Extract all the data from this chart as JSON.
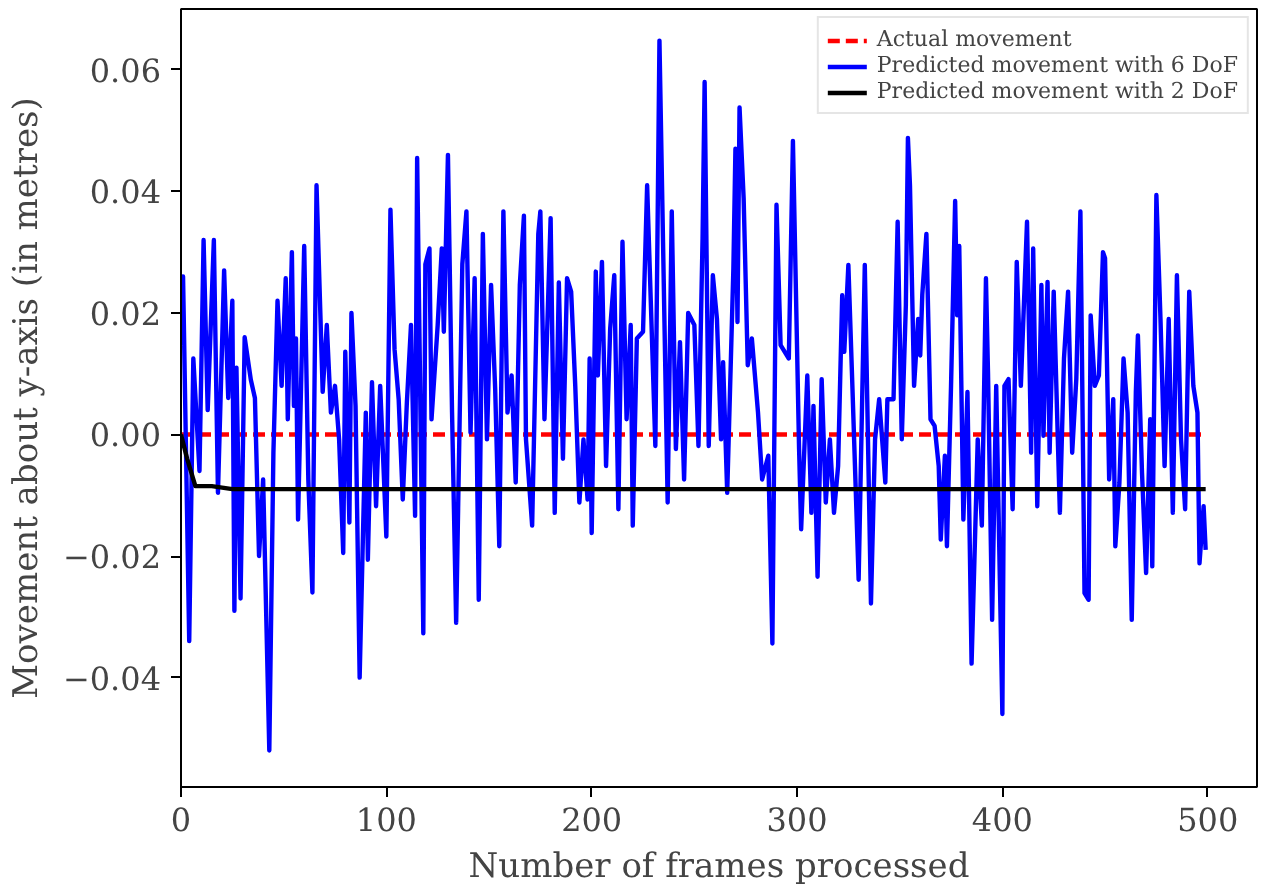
{
  "chart_data": {
    "type": "line",
    "xlabel": "Number of frames processed",
    "ylabel": "Movement about y-axis (in metres)",
    "xlim": [
      0,
      524
    ],
    "ylim": [
      -0.058,
      0.07
    ],
    "xticks": [
      0,
      100,
      200,
      300,
      400,
      500
    ],
    "yticks": [
      {
        "value": -0.04,
        "label": "−0.04"
      },
      {
        "value": -0.02,
        "label": "−0.02"
      },
      {
        "value": 0,
        "label": "0.00"
      },
      0.02,
      0.04,
      0.06
    ],
    "grid": false,
    "legend": "top right",
    "marker": "none",
    "series": [
      {
        "name": "Actual movement",
        "color": "#ff0000",
        "line_style": "dashed",
        "x": [
          0,
          499
        ],
        "values": [
          0,
          0
        ]
      },
      {
        "name": "Predicted movement with 6 DoF",
        "color": "#0000ff",
        "line_style": "solid",
        "x": [
          0,
          1,
          4,
          6,
          9,
          11,
          13,
          16,
          18,
          21,
          23,
          25,
          26,
          27,
          29,
          31,
          34,
          36,
          38,
          40,
          43,
          45,
          47,
          49,
          51,
          52,
          54,
          55,
          56,
          57,
          60,
          62,
          64,
          66,
          69,
          71,
          73,
          75,
          77,
          79,
          80,
          82,
          83,
          85,
          87,
          90,
          91,
          93,
          95,
          97,
          100,
          102,
          104,
          106,
          108,
          110,
          112,
          114,
          115,
          118,
          119,
          121,
          122,
          125,
          127,
          128,
          130,
          132,
          134,
          137,
          139,
          141,
          143,
          145,
          147,
          149,
          151,
          153,
          155,
          157,
          159,
          161,
          163,
          165,
          167,
          168,
          171,
          174,
          175,
          177,
          180,
          182,
          184,
          186,
          188,
          190,
          192,
          194,
          196,
          198,
          199,
          200,
          202,
          203,
          205,
          207,
          209,
          211,
          213,
          215,
          217,
          219,
          220,
          222,
          225,
          227,
          231,
          233,
          237,
          239,
          241,
          243,
          245,
          247,
          250,
          252,
          254,
          255,
          257,
          259,
          261,
          263,
          264,
          266,
          269,
          270,
          271,
          272,
          274,
          276,
          278,
          281,
          283,
          286,
          288,
          290,
          292,
          296,
          298,
          301,
          302,
          305,
          307,
          308,
          310,
          312,
          314,
          316,
          318,
          320,
          322,
          323,
          325,
          327,
          330,
          333,
          336,
          338,
          340,
          343,
          344,
          347,
          349,
          351,
          353,
          354,
          355,
          357,
          359,
          360,
          361,
          363,
          365,
          367,
          369,
          370,
          372,
          373,
          375,
          377,
          378,
          379,
          381,
          383,
          385,
          388,
          390,
          392,
          393,
          395,
          397,
          400,
          401,
          403,
          405,
          407,
          409,
          412,
          414,
          415,
          417,
          419,
          420,
          422,
          423,
          425,
          428,
          430,
          432,
          434,
          436,
          438,
          440,
          442,
          443,
          445,
          447,
          449,
          450,
          452,
          454,
          455,
          457,
          459,
          461,
          463,
          465,
          466,
          468,
          470,
          472,
          473,
          475,
          477,
          479,
          481,
          483,
          485,
          487,
          489,
          491,
          493,
          495,
          496,
          498,
          499
        ],
        "values": [
          0.0147,
          0.026,
          -0.034,
          0.0125,
          -0.006,
          0.032,
          0.004,
          0.032,
          -0.0096,
          0.027,
          0.006,
          0.022,
          -0.029,
          0.011,
          -0.027,
          0.016,
          0.009,
          0.006,
          -0.02,
          -0.0074,
          -0.052,
          -0.003,
          0.022,
          0.008,
          0.0257,
          0.0025,
          0.03,
          0.0047,
          0.0158,
          -0.014,
          0.031,
          -0.0074,
          -0.026,
          0.041,
          0.007,
          0.018,
          0.0036,
          0.008,
          -0.0008,
          -0.0195,
          0.0136,
          -0.0145,
          0.02,
          0.0047,
          -0.04,
          0.0036,
          -0.0206,
          0.0086,
          -0.0118,
          0.008,
          -0.0168,
          0.037,
          0.014,
          0.0058,
          -0.0107,
          0.0053,
          0.018,
          -0.0134,
          0.0455,
          -0.0327,
          0.028,
          0.0306,
          0.0025,
          0.018,
          0.0306,
          0.0169,
          0.046,
          0.0036,
          -0.031,
          0.028,
          0.0367,
          0.0003,
          0.0257,
          -0.0272,
          0.033,
          -0.0008,
          0.0246,
          0.0075,
          -0.0184,
          0.0367,
          0.0036,
          0.0097,
          -0.0079,
          0.0246,
          0.036,
          -0.0008,
          -0.015,
          0.033,
          0.0367,
          0.0025,
          0.0356,
          -0.0129,
          0.025,
          -0.004,
          0.0257,
          0.0235,
          0.008,
          -0.0112,
          -0.0008,
          -0.0107,
          0.0125,
          -0.0162,
          0.0268,
          0.0097,
          0.0284,
          -0.0052,
          0.0174,
          0.0262,
          -0.0123,
          0.0317,
          0.0025,
          0.018,
          -0.015,
          0.0158,
          0.0169,
          0.041,
          -0.0019,
          0.0648,
          -0.0112,
          0.0367,
          -0.0024,
          0.0152,
          -0.0074,
          0.02,
          0.018,
          -0.0019,
          0.0323,
          0.058,
          -0.0019,
          0.0262,
          0.019,
          -0.0008,
          0.0119,
          -0.0096,
          0.0273,
          0.047,
          0.0185,
          0.0538,
          0.0389,
          0.0114,
          0.0158,
          0.0036,
          -0.0074,
          -0.0035,
          -0.0344,
          0.0378,
          0.0147,
          0.0125,
          0.0483,
          -0.0024,
          -0.0156,
          0.0097,
          -0.0129,
          0.0047,
          -0.0234,
          0.0091,
          -0.0112,
          -0.0008,
          -0.0129,
          -0.0052,
          0.0229,
          0.0136,
          0.0279,
          0.0075,
          -0.0239,
          0.0279,
          -0.0278,
          -0.0008,
          0.0058,
          -0.0079,
          0.0058,
          0.0058,
          0.035,
          -0.0008,
          0.0213,
          0.0488,
          0.041,
          0.008,
          0.019,
          0.013,
          0.023,
          0.033,
          0.0025,
          0.0014,
          -0.0052,
          -0.0173,
          -0.0035,
          -0.0184,
          0.008,
          0.0384,
          0.0196,
          0.031,
          -0.014,
          0.007,
          -0.0377,
          -0.0008,
          -0.015,
          0.0257,
          0.0102,
          -0.0305,
          0.008,
          -0.046,
          0.008,
          0.0091,
          -0.0123,
          0.0284,
          0.008,
          0.035,
          -0.003,
          0.0306,
          -0.0118,
          0.0246,
          -0.0002,
          0.0251,
          -0.003,
          0.0235,
          -0.0129,
          0.0125,
          0.0235,
          -0.003,
          0.0091,
          0.0367,
          -0.0261,
          -0.0272,
          0.0196,
          0.008,
          0.0097,
          0.03,
          0.029,
          -0.0074,
          0.0058,
          -0.0184,
          -0.0079,
          0.0125,
          0.0036,
          -0.0305,
          0.007,
          0.0163,
          -0.0063,
          -0.0228,
          0.0025,
          -0.0217,
          0.0394,
          0.019,
          -0.0052,
          0.019,
          -0.0129,
          0.0262,
          -0.0008,
          -0.0123,
          0.0235,
          0.008,
          0.0036,
          -0.0212,
          -0.0118,
          -0.019
        ]
      },
      {
        "name": "Predicted movement with 2 DoF",
        "color": "#000000",
        "line_style": "solid",
        "x": [
          0,
          3,
          7,
          15,
          25,
          499
        ],
        "values": [
          0,
          -0.004,
          -0.0085,
          -0.0085,
          -0.009,
          -0.009
        ]
      }
    ]
  }
}
